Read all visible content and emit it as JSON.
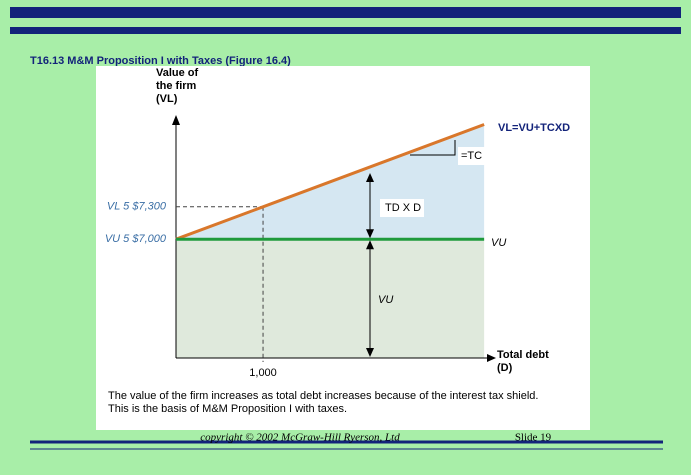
{
  "header": {
    "title": "T16.13   M&M Proposition I with Taxes (Figure 16.4)"
  },
  "chart_data": {
    "type": "line",
    "ylabel_lines": [
      "Value of",
      "the firm",
      "(VL)"
    ],
    "xlabel_lines": [
      "Total debt",
      "(D)"
    ],
    "x": [
      0,
      1000,
      3540
    ],
    "xlim": [
      0,
      3550
    ],
    "ylim": [
      5900,
      8150
    ],
    "xticks": [
      {
        "value": 1000,
        "label": "1,000"
      }
    ],
    "yticks": [
      {
        "value": 7300,
        "label": "VL 5 $7,300"
      },
      {
        "value": 7000,
        "label": "VU 5 $7,000"
      }
    ],
    "series": [
      {
        "name": "VL",
        "color": "#d9772b",
        "values": [
          7000,
          7300,
          8062
        ]
      },
      {
        "name": "VU",
        "color": "#1f9a3c",
        "values": [
          7000,
          7000,
          7000
        ]
      }
    ],
    "annotations": {
      "formula": "VL=VU+TCXD",
      "slope": "=TC",
      "shield": "TD X D",
      "line_label": "VU",
      "area_label": "VU"
    },
    "caption_lines": [
      "The value of the firm increases as total debt increases because of the interest tax shield.",
      "This is the basis of M&M Proposition I with taxes."
    ]
  },
  "footer": {
    "copyright": "copyright © 2002 McGraw-Hill Ryerson, Ltd",
    "slide": "Slide 19"
  }
}
